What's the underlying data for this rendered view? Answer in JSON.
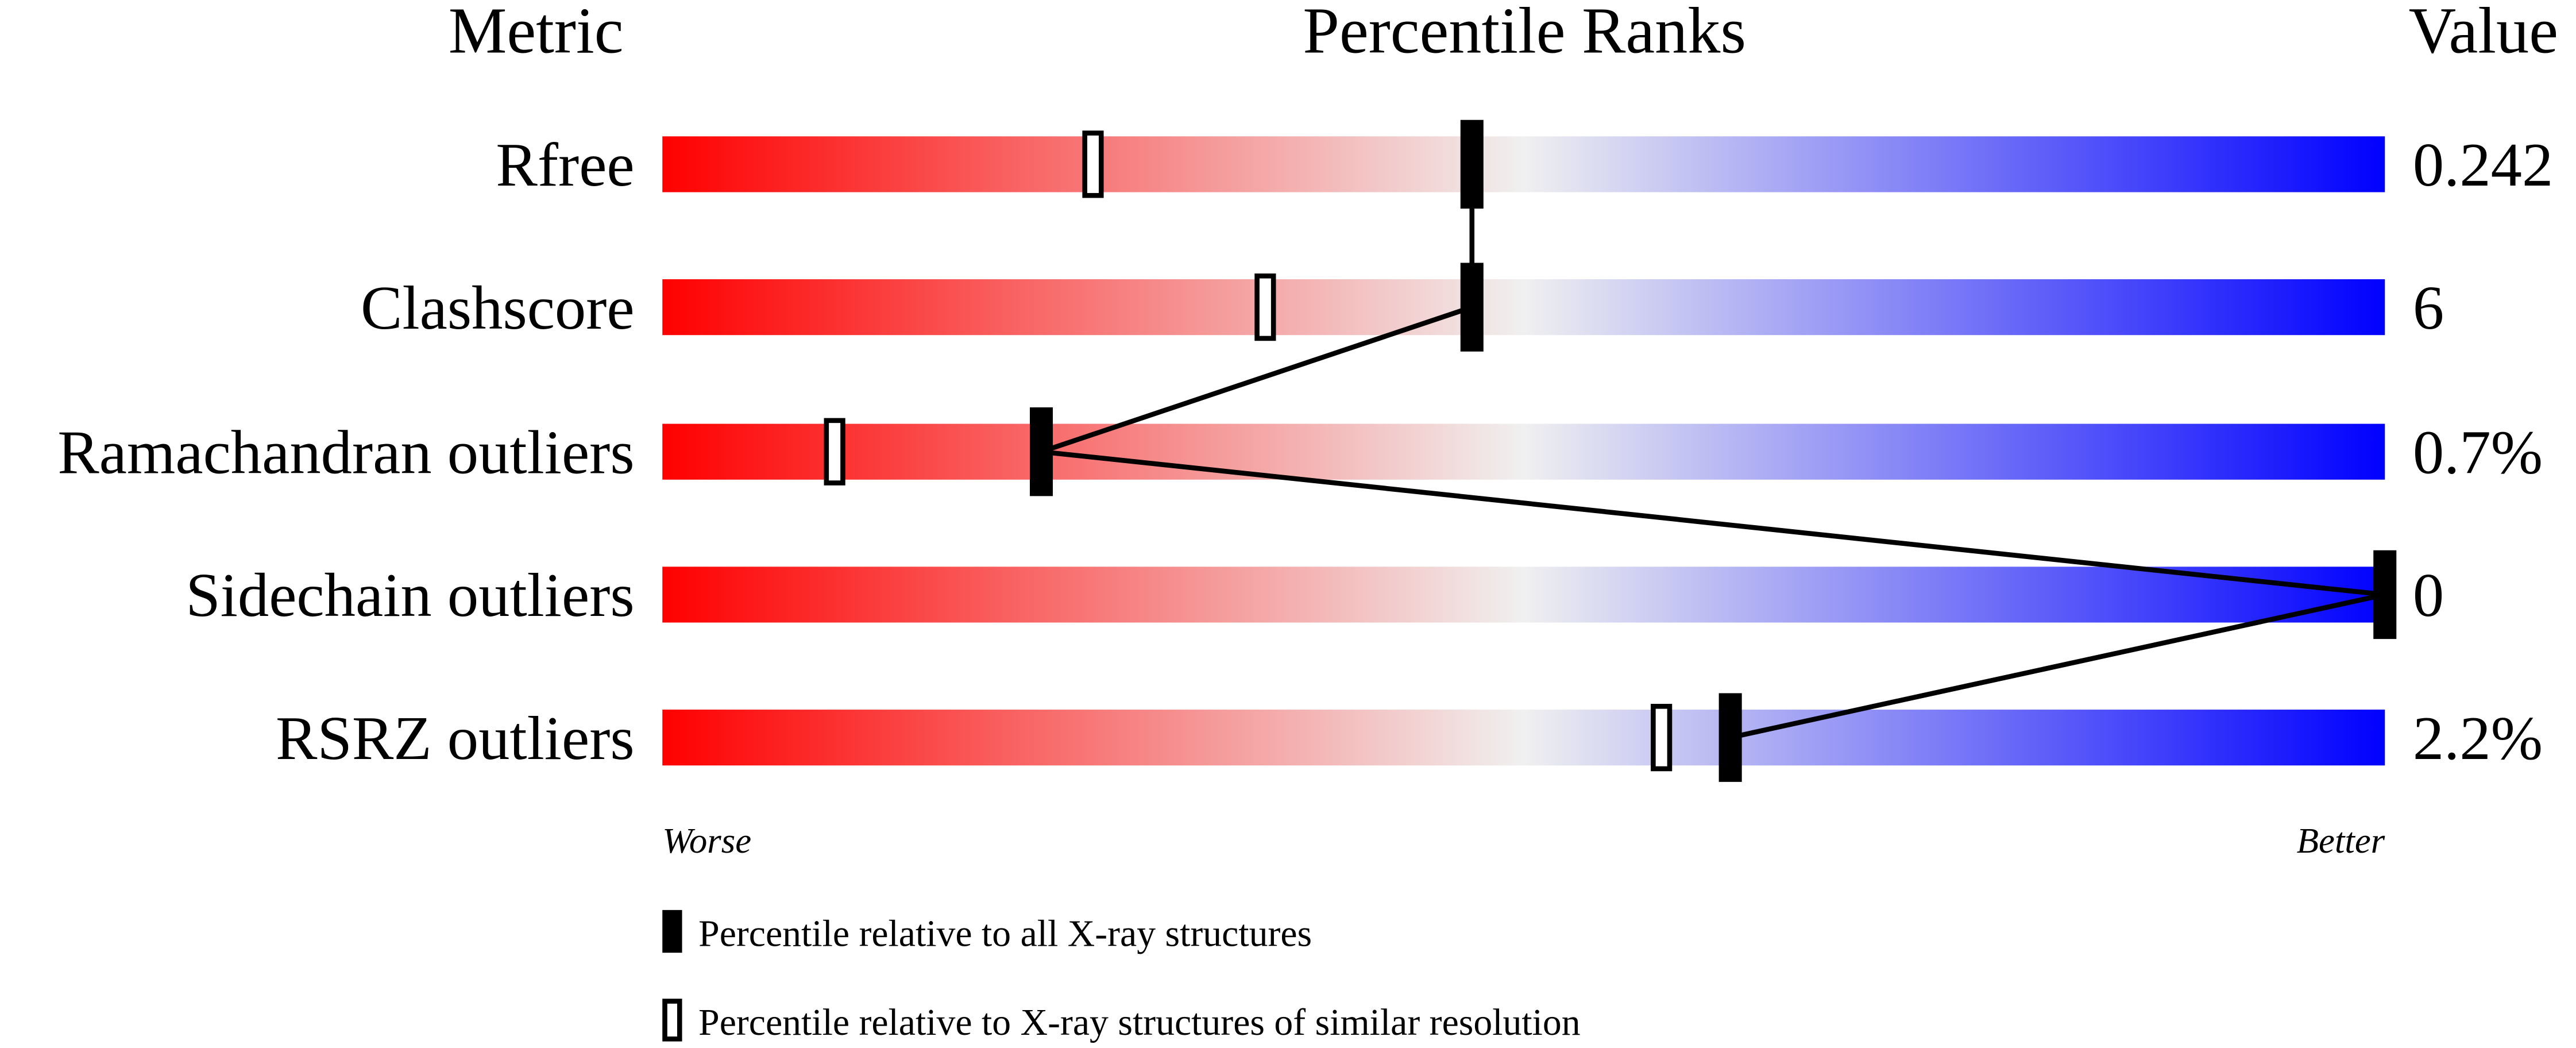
{
  "chart_data": {
    "type": "percentile-slider",
    "headers": {
      "metric": "Metric",
      "ranks": "Percentile Ranks",
      "value": "Value"
    },
    "xlim": [
      0,
      100
    ],
    "axis_labels": {
      "left": "Worse",
      "right": "Better"
    },
    "gradient_colors": {
      "worse": "#ff0000",
      "middle": "#f0f0f0",
      "better": "#0000ff"
    },
    "rows": [
      {
        "metric": "Rfree",
        "value": "0.242",
        "percentile_all": 47,
        "percentile_similar": 25
      },
      {
        "metric": "Clashscore",
        "value": "6",
        "percentile_all": 47,
        "percentile_similar": 35
      },
      {
        "metric": "Ramachandran outliers",
        "value": "0.7%",
        "percentile_all": 22,
        "percentile_similar": 10
      },
      {
        "metric": "Sidechain outliers",
        "value": "0",
        "percentile_all": 100,
        "percentile_similar": 100
      },
      {
        "metric": "RSRZ outliers",
        "value": "2.2%",
        "percentile_all": 62,
        "percentile_similar": 58
      }
    ],
    "legend": [
      {
        "marker": "filled",
        "label": "Percentile relative to all X-ray structures"
      },
      {
        "marker": "open",
        "label": "Percentile relative to X-ray structures of similar resolution"
      }
    ]
  }
}
